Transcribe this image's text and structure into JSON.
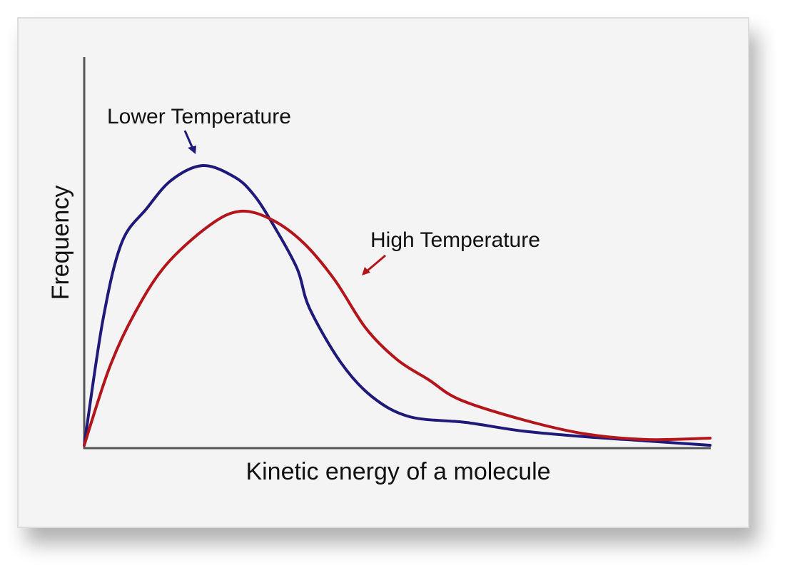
{
  "chart_data": {
    "type": "line",
    "title": "",
    "xlabel": "Kinetic energy of a molecule",
    "ylabel": "Frequency",
    "xlim": [
      0,
      100
    ],
    "ylim": [
      0,
      100
    ],
    "grid": false,
    "ticks": false,
    "series": [
      {
        "name": "Lower Temperature",
        "color": "#1f1a7a",
        "x": [
          0,
          3,
          6,
          10,
          14,
          19,
          24,
          27,
          30,
          34,
          36,
          41,
          46,
          52,
          61,
          70,
          80,
          90,
          100
        ],
        "y": [
          1,
          45,
          72,
          84,
          94,
          99,
          95,
          89,
          79,
          63,
          49,
          30,
          18,
          11,
          9,
          6,
          4,
          2.5,
          1
        ]
      },
      {
        "name": "High Temperature",
        "color": "#b3151b",
        "x": [
          0,
          4,
          8,
          13,
          20,
          25,
          30,
          35,
          40,
          45,
          50,
          55,
          60,
          70,
          80,
          90,
          100
        ],
        "y": [
          1,
          28,
          47,
          64,
          78,
          83,
          80,
          72,
          59,
          42,
          31,
          24,
          17,
          10,
          5,
          3,
          3.5
        ]
      }
    ],
    "annotations": [
      {
        "text": "Lower Temperature",
        "series": "Lower Temperature"
      },
      {
        "text": "High Temperature",
        "series": "High Temperature"
      }
    ]
  }
}
